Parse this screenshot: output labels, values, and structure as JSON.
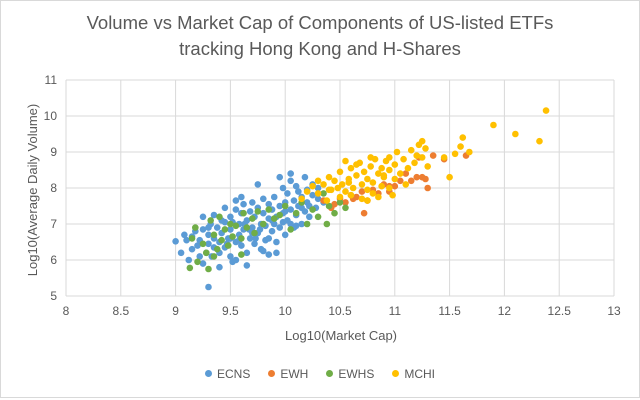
{
  "chart_data": {
    "type": "scatter",
    "title_line1": "Volume vs Market Cap of Components of US-listed ETFs",
    "title_line2": "tracking Hong Kong and H-Shares",
    "xlabel": "Log10(Market Cap)",
    "ylabel": "Log10(Average Daily Volume)",
    "xlim": [
      8,
      13
    ],
    "ylim": [
      5,
      11
    ],
    "xticks": [
      "8",
      "8.5",
      "9",
      "9.5",
      "10",
      "10.5",
      "11",
      "11.5",
      "12",
      "12.5",
      "13"
    ],
    "yticks": [
      "5",
      "6",
      "7",
      "8",
      "9",
      "10",
      "11"
    ],
    "grid": true,
    "legend_position": "bottom",
    "series": [
      {
        "name": "ECNS",
        "color": "#5b9bd5",
        "points": [
          [
            9.0,
            6.52
          ],
          [
            9.05,
            6.2
          ],
          [
            9.08,
            6.7
          ],
          [
            9.1,
            6.55
          ],
          [
            9.12,
            6.0
          ],
          [
            9.15,
            6.3
          ],
          [
            9.15,
            6.65
          ],
          [
            9.18,
            6.8
          ],
          [
            9.2,
            6.4
          ],
          [
            9.22,
            6.1
          ],
          [
            9.22,
            6.55
          ],
          [
            9.25,
            6.85
          ],
          [
            9.25,
            5.9
          ],
          [
            9.28,
            6.2
          ],
          [
            9.3,
            6.45
          ],
          [
            9.3,
            5.25
          ],
          [
            9.3,
            6.7
          ],
          [
            9.32,
            7.0
          ],
          [
            9.33,
            6.1
          ],
          [
            9.35,
            6.35
          ],
          [
            9.35,
            6.6
          ],
          [
            9.38,
            6.9
          ],
          [
            9.4,
            6.2
          ],
          [
            9.4,
            6.5
          ],
          [
            9.42,
            6.75
          ],
          [
            9.45,
            7.05
          ],
          [
            9.45,
            6.35
          ],
          [
            9.48,
            6.6
          ],
          [
            9.5,
            6.85
          ],
          [
            9.5,
            7.2
          ],
          [
            9.5,
            6.1
          ],
          [
            9.52,
            5.95
          ],
          [
            9.55,
            6.5
          ],
          [
            9.55,
            7.4
          ],
          [
            9.55,
            7.65
          ],
          [
            9.58,
            6.7
          ],
          [
            9.58,
            7.0
          ],
          [
            9.6,
            7.3
          ],
          [
            9.6,
            6.4
          ],
          [
            9.62,
            6.85
          ],
          [
            9.62,
            7.55
          ],
          [
            9.65,
            6.2
          ],
          [
            9.65,
            7.1
          ],
          [
            9.68,
            6.6
          ],
          [
            9.68,
            7.35
          ],
          [
            9.7,
            6.9
          ],
          [
            9.7,
            7.6
          ],
          [
            9.72,
            6.45
          ],
          [
            9.72,
            7.2
          ],
          [
            9.75,
            6.75
          ],
          [
            9.75,
            7.45
          ],
          [
            9.78,
            6.3
          ],
          [
            9.78,
            7.0
          ],
          [
            9.8,
            7.3
          ],
          [
            9.8,
            7.7
          ],
          [
            9.82,
            6.55
          ],
          [
            9.82,
            6.95
          ],
          [
            9.85,
            7.15
          ],
          [
            9.85,
            7.55
          ],
          [
            9.85,
            6.15
          ],
          [
            9.88,
            6.8
          ],
          [
            9.88,
            7.4
          ],
          [
            9.9,
            7.0
          ],
          [
            9.9,
            7.75
          ],
          [
            9.92,
            6.5
          ],
          [
            9.92,
            7.2
          ],
          [
            9.95,
            7.5
          ],
          [
            9.95,
            6.9
          ],
          [
            9.98,
            7.3
          ],
          [
            9.98,
            8.0
          ],
          [
            10.0,
            7.6
          ],
          [
            10.0,
            6.7
          ],
          [
            10.02,
            7.1
          ],
          [
            10.02,
            7.85
          ],
          [
            10.05,
            7.4
          ],
          [
            10.05,
            8.2
          ],
          [
            10.08,
            6.9
          ],
          [
            10.08,
            7.65
          ],
          [
            10.1,
            7.25
          ],
          [
            10.1,
            8.05
          ],
          [
            10.12,
            7.5
          ],
          [
            10.12,
            7.9
          ],
          [
            10.15,
            7.0
          ],
          [
            10.15,
            7.75
          ],
          [
            10.18,
            7.35
          ],
          [
            10.18,
            8.3
          ],
          [
            10.2,
            7.6
          ],
          [
            10.2,
            7.95
          ],
          [
            10.22,
            7.2
          ],
          [
            10.25,
            7.8
          ],
          [
            10.25,
            8.1
          ],
          [
            10.28,
            7.45
          ],
          [
            10.3,
            7.7
          ],
          [
            10.3,
            8.0
          ],
          [
            10.35,
            7.6
          ],
          [
            10.05,
            8.4
          ],
          [
            9.95,
            8.3
          ],
          [
            9.75,
            8.1
          ],
          [
            9.6,
            7.75
          ],
          [
            9.45,
            7.45
          ],
          [
            9.35,
            7.25
          ],
          [
            9.25,
            7.2
          ],
          [
            9.55,
            6.0
          ],
          [
            9.65,
            5.85
          ],
          [
            9.4,
            5.8
          ],
          [
            9.8,
            6.25
          ],
          [
            9.92,
            6.2
          ],
          [
            10.1,
            6.95
          ],
          [
            10.15,
            7.45
          ],
          [
            9.58,
            6.55
          ],
          [
            9.7,
            6.75
          ],
          [
            9.85,
            6.6
          ],
          [
            9.98,
            7.05
          ],
          [
            10.05,
            7.0
          ],
          [
            9.5,
            6.6
          ],
          [
            9.3,
            6.9
          ],
          [
            9.42,
            7.1
          ],
          [
            9.52,
            7.05
          ],
          [
            9.63,
            7.0
          ],
          [
            9.73,
            6.6
          ],
          [
            9.88,
            7.1
          ],
          [
            10.0,
            7.35
          ],
          [
            10.22,
            7.5
          ],
          [
            9.47,
            6.45
          ],
          [
            9.67,
            6.85
          ],
          [
            9.77,
            6.85
          ]
        ]
      },
      {
        "name": "EWH",
        "color": "#ed7d31",
        "points": [
          [
            10.35,
            7.65
          ],
          [
            10.45,
            7.55
          ],
          [
            10.5,
            7.7
          ],
          [
            10.55,
            7.6
          ],
          [
            10.6,
            7.8
          ],
          [
            10.65,
            7.75
          ],
          [
            10.7,
            7.9
          ],
          [
            10.72,
            7.3
          ],
          [
            10.75,
            7.65
          ],
          [
            10.8,
            7.95
          ],
          [
            10.85,
            7.85
          ],
          [
            10.9,
            8.1
          ],
          [
            10.95,
            7.9
          ],
          [
            11.0,
            8.05
          ],
          [
            11.05,
            8.2
          ],
          [
            11.1,
            8.4
          ],
          [
            11.15,
            8.2
          ],
          [
            11.2,
            8.3
          ],
          [
            11.25,
            8.3
          ],
          [
            11.28,
            8.25
          ],
          [
            11.3,
            8.0
          ],
          [
            11.35,
            8.9
          ],
          [
            11.45,
            8.8
          ],
          [
            11.65,
            8.9
          ],
          [
            10.62,
            7.7
          ],
          [
            10.42,
            7.45
          ],
          [
            10.95,
            8.05
          ],
          [
            11.22,
            8.85
          ]
        ]
      },
      {
        "name": "EWHS",
        "color": "#70ad47",
        "points": [
          [
            9.13,
            5.78
          ],
          [
            9.15,
            6.6
          ],
          [
            9.18,
            6.9
          ],
          [
            9.2,
            5.95
          ],
          [
            9.25,
            6.45
          ],
          [
            9.28,
            6.2
          ],
          [
            9.3,
            5.75
          ],
          [
            9.32,
            7.1
          ],
          [
            9.35,
            6.7
          ],
          [
            9.38,
            6.3
          ],
          [
            9.4,
            7.2
          ],
          [
            9.42,
            6.55
          ],
          [
            9.45,
            6.85
          ],
          [
            9.48,
            6.4
          ],
          [
            9.5,
            7.0
          ],
          [
            9.52,
            6.65
          ],
          [
            9.55,
            6.95
          ],
          [
            9.6,
            6.6
          ],
          [
            9.62,
            7.3
          ],
          [
            9.65,
            6.9
          ],
          [
            9.7,
            7.15
          ],
          [
            9.72,
            6.75
          ],
          [
            9.75,
            7.35
          ],
          [
            9.8,
            7.0
          ],
          [
            9.85,
            7.4
          ],
          [
            9.9,
            7.15
          ],
          [
            9.95,
            7.25
          ],
          [
            10.0,
            7.5
          ],
          [
            10.05,
            6.85
          ],
          [
            10.1,
            7.3
          ],
          [
            10.15,
            7.6
          ],
          [
            10.2,
            7.0
          ],
          [
            10.25,
            7.4
          ],
          [
            10.3,
            7.2
          ],
          [
            10.35,
            7.85
          ],
          [
            10.4,
            7.5
          ],
          [
            10.45,
            7.3
          ],
          [
            10.5,
            7.6
          ],
          [
            10.55,
            7.45
          ],
          [
            10.38,
            7.0
          ],
          [
            9.35,
            6.1
          ],
          [
            9.6,
            6.15
          ]
        ]
      },
      {
        "name": "MCHI",
        "color": "#ffc000",
        "points": [
          [
            10.15,
            7.7
          ],
          [
            10.2,
            7.9
          ],
          [
            10.25,
            8.05
          ],
          [
            10.3,
            7.85
          ],
          [
            10.3,
            8.2
          ],
          [
            10.35,
            8.1
          ],
          [
            10.38,
            7.65
          ],
          [
            10.4,
            8.3
          ],
          [
            10.42,
            7.95
          ],
          [
            10.45,
            8.2
          ],
          [
            10.48,
            8.0
          ],
          [
            10.5,
            7.75
          ],
          [
            10.5,
            8.45
          ],
          [
            10.52,
            8.1
          ],
          [
            10.55,
            7.9
          ],
          [
            10.58,
            8.25
          ],
          [
            10.6,
            7.8
          ],
          [
            10.6,
            8.55
          ],
          [
            10.62,
            8.0
          ],
          [
            10.65,
            8.35
          ],
          [
            10.68,
            8.7
          ],
          [
            10.7,
            7.7
          ],
          [
            10.7,
            8.1
          ],
          [
            10.72,
            8.45
          ],
          [
            10.75,
            7.95
          ],
          [
            10.75,
            8.25
          ],
          [
            10.78,
            8.6
          ],
          [
            10.8,
            7.85
          ],
          [
            10.8,
            8.15
          ],
          [
            10.82,
            8.8
          ],
          [
            10.85,
            8.4
          ],
          [
            10.85,
            7.75
          ],
          [
            10.88,
            8.05
          ],
          [
            10.88,
            8.55
          ],
          [
            10.9,
            8.3
          ],
          [
            10.92,
            8.75
          ],
          [
            10.95,
            8.0
          ],
          [
            10.95,
            8.5
          ],
          [
            10.98,
            7.8
          ],
          [
            11.0,
            8.25
          ],
          [
            11.0,
            8.65
          ],
          [
            11.02,
            9.0
          ],
          [
            11.05,
            8.4
          ],
          [
            11.08,
            8.8
          ],
          [
            11.1,
            8.1
          ],
          [
            11.12,
            8.55
          ],
          [
            11.15,
            9.05
          ],
          [
            11.18,
            8.7
          ],
          [
            11.2,
            8.9
          ],
          [
            11.22,
            9.2
          ],
          [
            11.25,
            9.3
          ],
          [
            11.28,
            9.1
          ],
          [
            11.3,
            8.6
          ],
          [
            11.5,
            8.3
          ],
          [
            11.55,
            8.95
          ],
          [
            11.6,
            9.15
          ],
          [
            11.62,
            9.4
          ],
          [
            11.68,
            9.0
          ],
          [
            11.9,
            9.75
          ],
          [
            12.1,
            9.5
          ],
          [
            12.32,
            9.3
          ],
          [
            12.38,
            10.15
          ],
          [
            10.55,
            8.75
          ],
          [
            10.65,
            8.65
          ],
          [
            10.78,
            8.85
          ],
          [
            10.9,
            8.35
          ],
          [
            10.95,
            8.85
          ],
          [
            11.25,
            8.85
          ],
          [
            11.45,
            8.85
          ],
          [
            10.75,
            7.65
          ],
          [
            10.58,
            8.15
          ],
          [
            10.4,
            7.95
          ]
        ]
      }
    ]
  }
}
